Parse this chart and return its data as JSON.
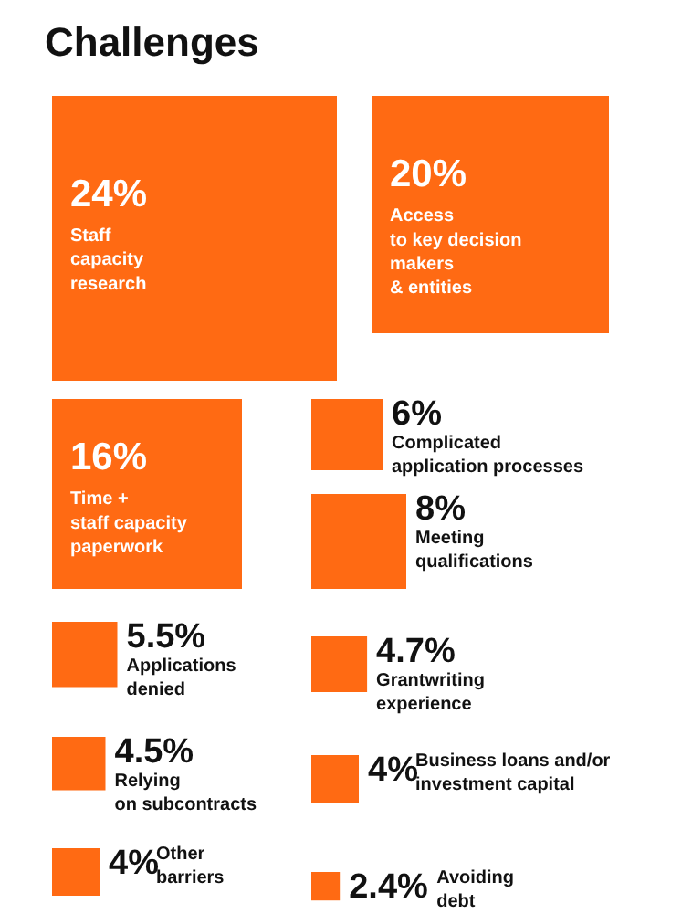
{
  "chart_data": {
    "type": "other",
    "title": "Challenges",
    "categories": [
      "Staff\ncapacity\nresearch",
      "Access\nto key decision\nmakers\n& entities",
      "Time +\nstaff capacity\npaperwork",
      "Complicated\napplication processes",
      "Meeting\nqualifications",
      "Applications\ndenied",
      "Grantwriting\nexperience",
      "Relying\non subcontracts",
      "Business loans and/or\ninvestment capital",
      "Other\nbarriers",
      "Avoiding\ndebt"
    ],
    "values": [
      24,
      20,
      16,
      6,
      8,
      5.5,
      4.7,
      4.5,
      4,
      4,
      2.4
    ],
    "value_labels": [
      "24%",
      "20%",
      "16%",
      "6%",
      "8%",
      "5.5%",
      "4.7%",
      "4.5%",
      "4%",
      "4%",
      "2.4%"
    ],
    "color": "#ff6a13"
  }
}
